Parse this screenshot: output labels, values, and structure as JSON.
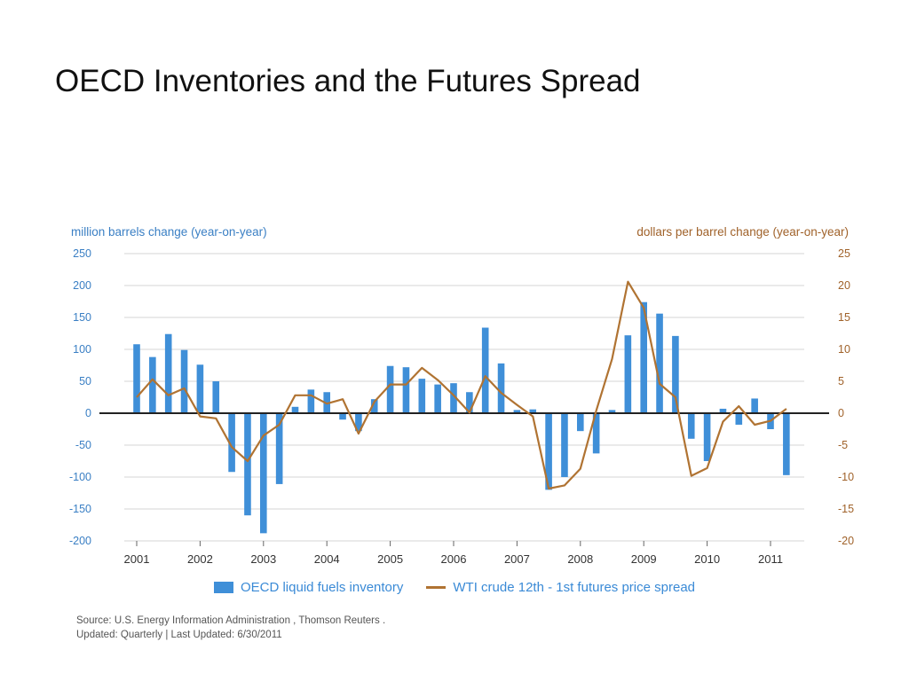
{
  "slide": {
    "title": "OECD Inventories and the Futures Spread"
  },
  "colors": {
    "bar": "#3f8fd8",
    "line": "#b07332",
    "left_axis": "#3a7fc4",
    "right_axis": "#a0622a",
    "grid": "#d6d6d6"
  },
  "source": {
    "line1": "Source: U.S. Energy Information Administration , Thomson Reuters .",
    "line2": "Updated: Quarterly | Last Updated: 6/30/2011"
  },
  "chart_data": {
    "type": "bar",
    "grid": true,
    "legend_position": "bottom",
    "ylabel_left": "million barrels change (year-on-year)",
    "ylabel_right": "dollars per barrel change (year-on-year)",
    "ylim_left": [
      -200,
      250
    ],
    "ylim_right": [
      -20,
      25
    ],
    "yticks_left": [
      "250",
      "200",
      "150",
      "100",
      "50",
      "0",
      "-50",
      "-100",
      "-150",
      "-200"
    ],
    "yticks_right": [
      "25",
      "20",
      "15",
      "10",
      "5",
      "0",
      "-5",
      "-10",
      "-15",
      "-20"
    ],
    "xticks": [
      "2001",
      "2002",
      "2003",
      "2004",
      "2005",
      "2006",
      "2007",
      "2008",
      "2009",
      "2010",
      "2011"
    ],
    "quarters": [
      "2001Q1",
      "2001Q2",
      "2001Q3",
      "2001Q4",
      "2002Q1",
      "2002Q2",
      "2002Q3",
      "2002Q4",
      "2003Q1",
      "2003Q2",
      "2003Q3",
      "2003Q4",
      "2004Q1",
      "2004Q2",
      "2004Q3",
      "2004Q4",
      "2005Q1",
      "2005Q2",
      "2005Q3",
      "2005Q4",
      "2006Q1",
      "2006Q2",
      "2006Q3",
      "2006Q4",
      "2007Q1",
      "2007Q2",
      "2007Q3",
      "2007Q4",
      "2008Q1",
      "2008Q2",
      "2008Q3",
      "2008Q4",
      "2009Q1",
      "2009Q2",
      "2009Q3",
      "2009Q4",
      "2010Q1",
      "2010Q2",
      "2010Q3",
      "2010Q4",
      "2011Q1",
      "2011Q2"
    ],
    "series": [
      {
        "name": "OECD liquid fuels inventory",
        "kind": "bar",
        "axis": "left",
        "values": [
          108,
          88,
          124,
          99,
          76,
          50,
          -92,
          -160,
          -188,
          -111,
          10,
          37,
          33,
          -10,
          -28,
          22,
          74,
          72,
          54,
          45,
          47,
          33,
          134,
          78,
          5,
          6,
          -120,
          -100,
          -28,
          -63,
          5,
          122,
          174,
          156,
          121,
          -40,
          -75,
          7,
          -18,
          23,
          -25,
          -97
        ]
      },
      {
        "name": "WTI crude 12th - 1st futures price spread",
        "kind": "line",
        "axis": "right",
        "values": [
          2.5,
          5.3,
          2.8,
          3.9,
          -0.5,
          -0.8,
          -5.3,
          -7.5,
          -3.5,
          -1.8,
          2.8,
          2.8,
          1.5,
          2.2,
          -3.2,
          1.8,
          4.5,
          4.5,
          7.1,
          5.2,
          2.8,
          0.1,
          5.8,
          3.2,
          1.3,
          -0.5,
          -11.8,
          -11.3,
          -8.7,
          0.4,
          8.5,
          20.6,
          16.5,
          4.6,
          2.5,
          -9.8,
          -8.6,
          -1.3,
          1.1,
          -1.8,
          -1.2,
          0.7
        ]
      }
    ]
  }
}
